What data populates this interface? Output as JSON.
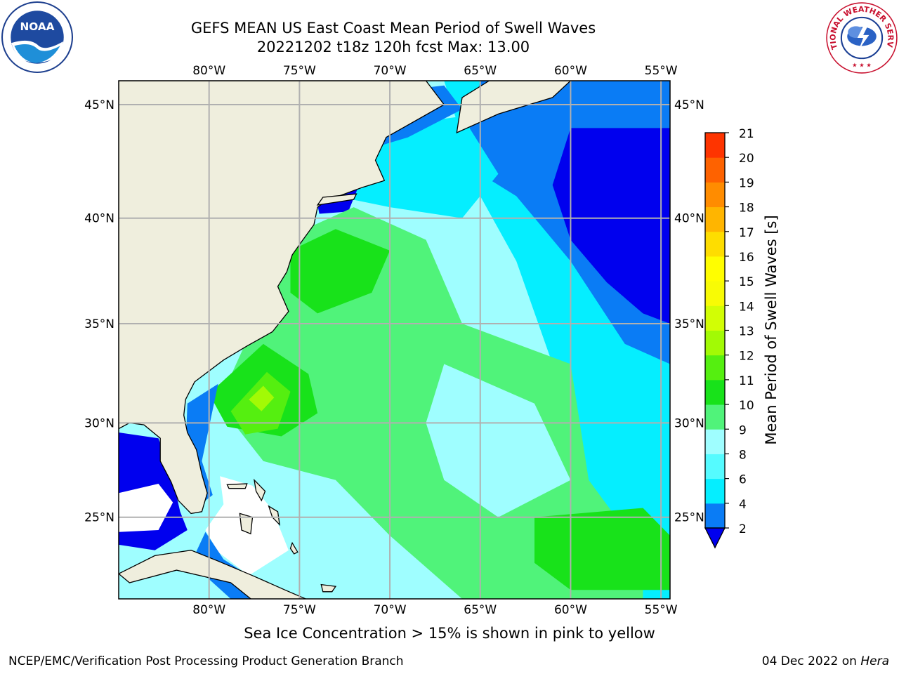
{
  "title_line1": "GEFS MEAN US East Coast Mean Period of Swell Waves",
  "title_line2": "20221202 t18z 120h fcst   Max: 13.00",
  "map": {
    "lon_range": [
      -85,
      -54.5
    ],
    "lat_range": [
      20.5,
      46
    ],
    "lon_ticks": [
      "80°W",
      "75°W",
      "70°W",
      "65°W",
      "60°W",
      "55°W"
    ],
    "lat_ticks": [
      "45°N",
      "40°N",
      "35°N",
      "30°N",
      "25°N"
    ],
    "gridlines": true,
    "land_color": "#efeedd"
  },
  "colorbar": {
    "label": "Mean Period of Swell Waves [s]",
    "ticks": [
      "2",
      "4",
      "6",
      "8",
      "9",
      "10",
      "11",
      "12",
      "13",
      "14",
      "15",
      "16",
      "17",
      "18",
      "19",
      "20",
      "21"
    ],
    "colors": [
      "#0a7cf5",
      "#05eeff",
      "#55fbff",
      "#9ffeff",
      "#50f37a",
      "#18e21a",
      "#55ef10",
      "#a2fa05",
      "#d2fe05",
      "#f8fb05",
      "#fffe00",
      "#fedd00",
      "#ffb500",
      "#ff8c00",
      "#fe6200",
      "#fe3400",
      "#ff0000"
    ],
    "extend_color": "#0000ee"
  },
  "seaice_note": "Sea Ice Concentration > 15% is shown in pink to yellow",
  "footer": {
    "left": "NCEP/EMC/Verification Post Processing Product Generation Branch",
    "date": "04 Dec 2022 on ",
    "host": "Hera"
  },
  "logos": {
    "noaa": "NOAA",
    "nws_text": "NATIONAL WEATHER SERVICE"
  }
}
